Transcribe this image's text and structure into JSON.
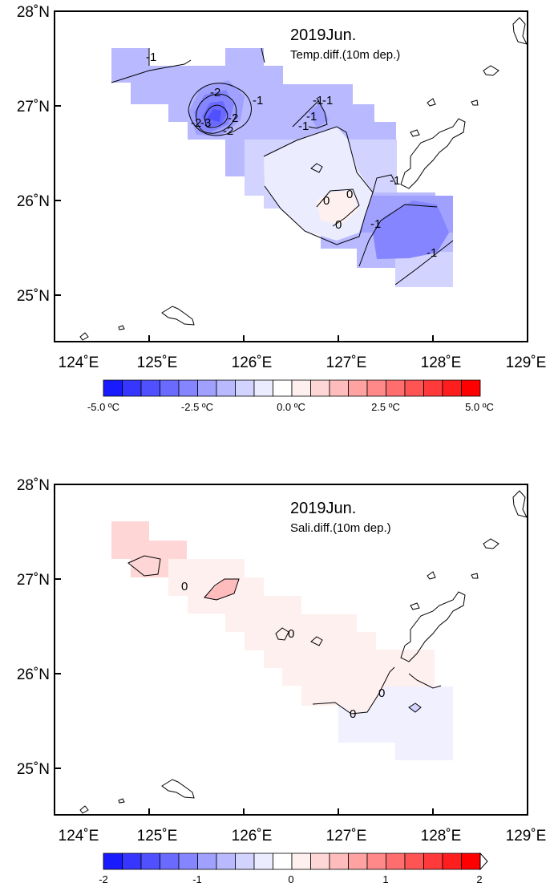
{
  "colors": {
    "blue_scale": [
      "#1a1aff",
      "#3636ff",
      "#5050ff",
      "#6a6aff",
      "#8585ff",
      "#a0a0ff",
      "#b9b9ff",
      "#d3d3ff",
      "#ececff"
    ],
    "red_scale": [
      "#fff0f0",
      "#ffd6d6",
      "#ffbcbc",
      "#ffa2a2",
      "#ff8888",
      "#ff6e6e",
      "#ff5454",
      "#ff3a3a",
      "#ff1e1e",
      "#ff0000"
    ]
  },
  "panels": [
    {
      "title": "2019Jun.",
      "subtitle": "Temp.diff.(10m dep.)",
      "lat_labels": [
        "28˚N",
        "27˚N",
        "26˚N",
        "25˚N"
      ],
      "lon_labels": [
        "124˚E",
        "125˚E",
        "126˚E",
        "127˚E",
        "128˚E",
        "129˚E"
      ],
      "contour_labels": [
        "-1",
        "-2",
        "-1",
        "-2",
        "-2",
        "-3",
        "-2",
        "-1",
        "-1",
        "-1",
        "-1",
        "0",
        "0",
        "0",
        "-1",
        "-1",
        "-1"
      ],
      "colorbar_labels": [
        "-5.0 ºC",
        "-2.5 ºC",
        "0.0 ºC",
        "2.5 ºC",
        "5.0 ºC"
      ]
    },
    {
      "title": "2019Jun.",
      "subtitle": "Sali.diff.(10m dep.)",
      "lat_labels": [
        "28˚N",
        "27˚N",
        "26˚N",
        "25˚N"
      ],
      "lon_labels": [
        "124˚E",
        "125˚E",
        "126˚E",
        "127˚E",
        "128˚E",
        "129˚E"
      ],
      "contour_labels": [
        "0",
        "0",
        "0",
        "0"
      ],
      "colorbar_labels": [
        "-2",
        "-1",
        "0",
        "1",
        "2"
      ]
    }
  ]
}
